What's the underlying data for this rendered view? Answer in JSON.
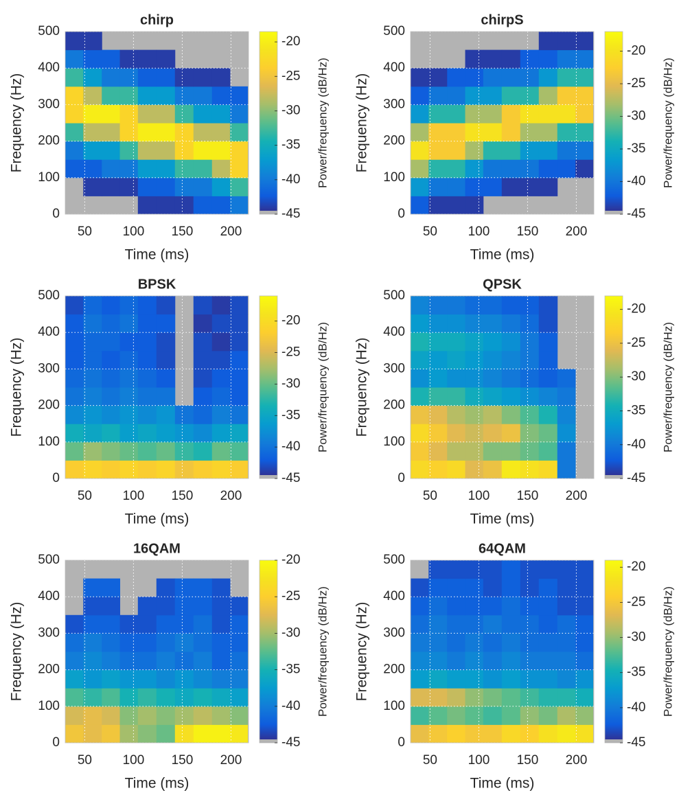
{
  "chart_data": [
    {
      "type": "heatmap",
      "title": "chirp",
      "xlabel": "Time (ms)",
      "ylabel": "Frequency (Hz)",
      "clabel": "Power/frequency (dB/Hz)",
      "x": [
        39,
        58,
        77,
        95,
        114,
        133,
        152,
        171,
        190,
        208
      ],
      "y": [
        25,
        75,
        125,
        175,
        225,
        275,
        325,
        375,
        425,
        475
      ],
      "values": [
        [
          null,
          null,
          null,
          null,
          -44,
          -44,
          -44,
          -42,
          -42,
          -40
        ],
        [
          null,
          -44,
          -44,
          -44,
          -42,
          -42,
          -40,
          -40,
          -37,
          -33
        ],
        [
          -42,
          -42,
          -40,
          -40,
          -37,
          -37,
          -33,
          -33,
          -28,
          -23
        ],
        [
          -40,
          -37,
          -37,
          -33,
          -28,
          -28,
          -23,
          -20,
          -20,
          -23
        ],
        [
          -33,
          -28,
          -28,
          -23,
          -20,
          -20,
          -23,
          -28,
          -28,
          -33
        ],
        [
          -23,
          -20,
          -20,
          -23,
          -28,
          -28,
          -33,
          -37,
          -37,
          -40
        ],
        [
          -23,
          -28,
          -33,
          -33,
          -37,
          -37,
          -40,
          -40,
          -42,
          -42
        ],
        [
          -33,
          -37,
          -40,
          -40,
          -42,
          -42,
          -44,
          -44,
          -44,
          null
        ],
        [
          -40,
          -42,
          -42,
          -44,
          -44,
          -44,
          null,
          null,
          null,
          null
        ],
        [
          -44,
          -44,
          null,
          null,
          null,
          null,
          null,
          null,
          null,
          null
        ]
      ],
      "xlim": [
        30,
        218
      ],
      "ylim": [
        0,
        500
      ],
      "xticks": [
        50,
        100,
        150,
        200
      ],
      "yticks": [
        0,
        100,
        200,
        300,
        400,
        500
      ],
      "clim": [
        -45,
        -18.5
      ],
      "cticks": [
        -45,
        -40,
        -35,
        -30,
        -25,
        -20
      ],
      "grid": true,
      "colormap": "parula",
      "null_color": "#b3b3b3"
    },
    {
      "type": "heatmap",
      "title": "chirpS",
      "xlabel": "Time (ms)",
      "ylabel": "Frequency (Hz)",
      "clabel": "Power/frequency (dB/Hz)",
      "x": [
        39,
        58,
        77,
        95,
        114,
        133,
        152,
        171,
        190,
        208
      ],
      "y": [
        25,
        75,
        125,
        175,
        225,
        275,
        325,
        375,
        425,
        475
      ],
      "values": [
        [
          -42,
          -44,
          -44,
          -44,
          null,
          null,
          null,
          null,
          null,
          null
        ],
        [
          -37,
          -40,
          -40,
          -42,
          -42,
          -44,
          -44,
          -44,
          null,
          null
        ],
        [
          -28,
          -33,
          -33,
          -37,
          -40,
          -40,
          -40,
          -42,
          -42,
          -44
        ],
        [
          -20,
          -23,
          -23,
          -28,
          -33,
          -33,
          -37,
          -37,
          -40,
          -40
        ],
        [
          -28,
          -23,
          -23,
          -20,
          -20,
          -23,
          -28,
          -28,
          -33,
          -33
        ],
        [
          -37,
          -33,
          -33,
          -28,
          -28,
          -23,
          -20,
          -20,
          -20,
          -23
        ],
        [
          -42,
          -40,
          -40,
          -37,
          -37,
          -33,
          -33,
          -28,
          -23,
          -23
        ],
        [
          -44,
          -44,
          -42,
          -42,
          -40,
          -40,
          -40,
          -37,
          -33,
          -33
        ],
        [
          null,
          null,
          null,
          -44,
          -44,
          -44,
          -42,
          -42,
          -40,
          -40
        ],
        [
          null,
          null,
          null,
          null,
          null,
          null,
          null,
          -44,
          -44,
          -44
        ]
      ],
      "xlim": [
        30,
        218
      ],
      "ylim": [
        0,
        500
      ],
      "xticks": [
        50,
        100,
        150,
        200
      ],
      "yticks": [
        0,
        100,
        200,
        300,
        400,
        500
      ],
      "clim": [
        -45,
        -17
      ],
      "cticks": [
        -45,
        -40,
        -35,
        -30,
        -25,
        -20
      ],
      "grid": true,
      "colormap": "parula",
      "null_color": "#b3b3b3"
    },
    {
      "type": "heatmap",
      "title": "BPSK",
      "xlabel": "Time (ms)",
      "ylabel": "Frequency (Hz)",
      "clabel": "Power/frequency (dB/Hz)",
      "x": [
        39,
        58,
        77,
        95,
        114,
        133,
        152,
        171,
        190,
        208
      ],
      "y": [
        25,
        75,
        125,
        175,
        225,
        275,
        325,
        375,
        425,
        475
      ],
      "values": [
        [
          -22,
          -21,
          -22,
          -21,
          -22,
          -21,
          -23,
          -22,
          -21,
          -22
        ],
        [
          -30,
          -28,
          -29,
          -30,
          -31,
          -30,
          -32,
          -33,
          -30,
          -31
        ],
        [
          -34,
          -35,
          -34,
          -36,
          -35,
          -36,
          -37,
          -38,
          -36,
          -35
        ],
        [
          -38,
          -37,
          -38,
          -37,
          -38,
          -37,
          -40,
          -41,
          -39,
          -40
        ],
        [
          -40,
          -39,
          -40,
          -39,
          -40,
          -40,
          null,
          -42,
          -41,
          -42
        ],
        [
          -41,
          -40,
          -41,
          -40,
          -41,
          -42,
          null,
          -43,
          -42,
          -42
        ],
        [
          -42,
          -41,
          -42,
          -41,
          -42,
          -43,
          null,
          -43,
          -43,
          -42
        ],
        [
          -42,
          -41,
          -41,
          -42,
          -42,
          -43,
          null,
          -43,
          -44,
          -43
        ],
        [
          -42,
          -40,
          -41,
          -40,
          -42,
          -42,
          null,
          -44,
          -43,
          -43
        ],
        [
          -43,
          -41,
          -42,
          -41,
          -42,
          -43,
          null,
          -43,
          -44,
          -43
        ]
      ],
      "xlim": [
        30,
        218
      ],
      "ylim": [
        0,
        500
      ],
      "xticks": [
        50,
        100,
        150,
        200
      ],
      "yticks": [
        0,
        100,
        200,
        300,
        400,
        500
      ],
      "clim": [
        -45,
        -16
      ],
      "cticks": [
        -45,
        -40,
        -35,
        -30,
        -25,
        -20
      ],
      "grid": true,
      "colormap": "parula",
      "null_color": "#b3b3b3"
    },
    {
      "type": "heatmap",
      "title": "QPSK",
      "xlabel": "Time (ms)",
      "ylabel": "Frequency (Hz)",
      "clabel": "Power/frequency (dB/Hz)",
      "x": [
        39,
        58,
        77,
        95,
        114,
        133,
        152,
        171,
        190,
        208
      ],
      "y": [
        25,
        75,
        125,
        175,
        225,
        275,
        325,
        375,
        425,
        475
      ],
      "values": [
        [
          -22,
          -23,
          -22,
          -26,
          -25,
          -20,
          -21,
          -22,
          -40,
          null
        ],
        [
          -24,
          -26,
          -28,
          -28,
          -30,
          -30,
          -31,
          -32,
          -40,
          null
        ],
        [
          -22,
          -24,
          -26,
          -27,
          -26,
          -25,
          -30,
          -31,
          -38,
          null
        ],
        [
          -25,
          -26,
          -28,
          -29,
          -28,
          -30,
          -32,
          -34,
          -39,
          null
        ],
        [
          -34,
          -33,
          -33,
          -35,
          -36,
          -37,
          -38,
          -39,
          -40,
          null
        ],
        [
          -38,
          -37,
          -38,
          -38,
          -39,
          -40,
          -41,
          -42,
          -41,
          null
        ],
        [
          -36,
          -37,
          -36,
          -37,
          -38,
          -39,
          -40,
          -42,
          null,
          null
        ],
        [
          -34,
          -35,
          -35,
          -36,
          -37,
          -38,
          -40,
          -42,
          null,
          null
        ],
        [
          -37,
          -38,
          -38,
          -39,
          -39,
          -40,
          -41,
          -43,
          null,
          null
        ],
        [
          -39,
          -40,
          -40,
          -41,
          -41,
          -42,
          -42,
          -43,
          null,
          null
        ]
      ],
      "xlim": [
        30,
        218
      ],
      "ylim": [
        0,
        500
      ],
      "xticks": [
        50,
        100,
        150,
        200
      ],
      "yticks": [
        0,
        100,
        200,
        300,
        400,
        500
      ],
      "clim": [
        -45,
        -18
      ],
      "cticks": [
        -45,
        -40,
        -35,
        -30,
        -25,
        -20
      ],
      "grid": true,
      "colormap": "parula",
      "null_color": "#b3b3b3"
    },
    {
      "type": "heatmap",
      "title": "16QAM",
      "xlabel": "Time (ms)",
      "ylabel": "Frequency (Hz)",
      "clabel": "Power/frequency (dB/Hz)",
      "x": [
        39,
        58,
        77,
        95,
        114,
        133,
        152,
        171,
        190,
        208
      ],
      "y": [
        25,
        75,
        125,
        175,
        225,
        275,
        325,
        375,
        425,
        475
      ],
      "values": [
        [
          -26,
          -27,
          -26,
          -30,
          -31,
          -32,
          -23,
          -21,
          -21,
          -22
        ],
        [
          -28,
          -27,
          -28,
          -31,
          -30,
          -31,
          -30,
          -29,
          -30,
          -31
        ],
        [
          -33,
          -34,
          -33,
          -35,
          -34,
          -35,
          -36,
          -35,
          -36,
          -37
        ],
        [
          -37,
          -38,
          -37,
          -38,
          -38,
          -39,
          -38,
          -39,
          -40,
          -40
        ],
        [
          -40,
          -39,
          -40,
          -41,
          -41,
          -40,
          -41,
          -40,
          -42,
          -41
        ],
        [
          -41,
          -40,
          -41,
          -42,
          -42,
          -41,
          -40,
          -41,
          -42,
          -42
        ],
        [
          -43,
          -42,
          -42,
          -43,
          -43,
          -42,
          -42,
          -41,
          -43,
          -42
        ],
        [
          null,
          -43,
          -43,
          null,
          -43,
          -43,
          -42,
          -42,
          -43,
          -43
        ],
        [
          null,
          -42,
          -42,
          null,
          null,
          -43,
          -42,
          -42,
          -43,
          null
        ],
        [
          null,
          null,
          null,
          null,
          null,
          null,
          null,
          null,
          null,
          null
        ]
      ],
      "xlim": [
        30,
        218
      ],
      "ylim": [
        0,
        500
      ],
      "xticks": [
        50,
        100,
        150,
        200
      ],
      "yticks": [
        0,
        100,
        200,
        300,
        400,
        500
      ],
      "clim": [
        -45,
        -20
      ],
      "cticks": [
        -45,
        -40,
        -35,
        -30,
        -25,
        -20
      ],
      "grid": true,
      "colormap": "parula",
      "null_color": "#b3b3b3"
    },
    {
      "type": "heatmap",
      "title": "64QAM",
      "xlabel": "Time (ms)",
      "ylabel": "Frequency (Hz)",
      "clabel": "Power/frequency (dB/Hz)",
      "x": [
        39,
        58,
        77,
        95,
        114,
        133,
        152,
        171,
        190,
        208
      ],
      "y": [
        25,
        75,
        125,
        175,
        225,
        275,
        325,
        375,
        425,
        475
      ],
      "values": [
        [
          -26,
          -25,
          -24,
          -25,
          -25,
          -23,
          -24,
          -22,
          -21,
          -22
        ],
        [
          -33,
          -32,
          -31,
          -32,
          -33,
          -32,
          -30,
          -31,
          -29,
          -30
        ],
        [
          -27,
          -27,
          -28,
          -30,
          -31,
          -32,
          -33,
          -34,
          -34,
          -35
        ],
        [
          -37,
          -36,
          -37,
          -37,
          -38,
          -37,
          -38,
          -38,
          -39,
          -38
        ],
        [
          -39,
          -39,
          -40,
          -39,
          -40,
          -39,
          -40,
          -40,
          -40,
          -41
        ],
        [
          -40,
          -40,
          -41,
          -40,
          -41,
          -40,
          -41,
          -41,
          -41,
          -42
        ],
        [
          -41,
          -40,
          -41,
          -41,
          -40,
          -41,
          -41,
          -42,
          -41,
          -42
        ],
        [
          -42,
          -41,
          -42,
          -42,
          -42,
          -41,
          -42,
          -42,
          -43,
          -43
        ],
        [
          -43,
          -42,
          -42,
          -42,
          -43,
          -42,
          -43,
          -42,
          -43,
          -43
        ],
        [
          null,
          -43,
          -43,
          -43,
          -43,
          -42,
          -43,
          -43,
          -43,
          -43
        ]
      ],
      "xlim": [
        30,
        218
      ],
      "ylim": [
        0,
        500
      ],
      "xticks": [
        50,
        100,
        150,
        200
      ],
      "yticks": [
        0,
        100,
        200,
        300,
        400,
        500
      ],
      "clim": [
        -45,
        -19
      ],
      "cticks": [
        -45,
        -40,
        -35,
        -30,
        -25,
        -20
      ],
      "grid": true,
      "colormap": "parula",
      "null_color": "#b3b3b3"
    }
  ]
}
